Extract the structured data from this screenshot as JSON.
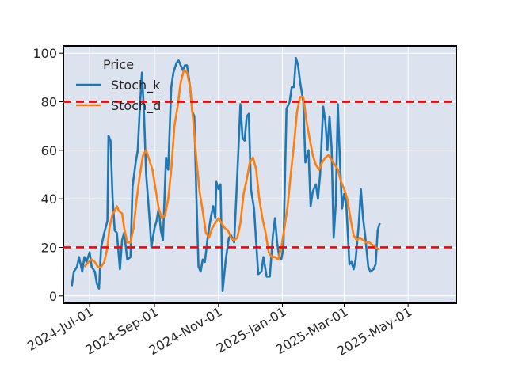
{
  "chart_data": {
    "type": "line",
    "legend_title": "Price",
    "legend_position": "top-left",
    "grid": true,
    "x_range": [
      "2024-06-06",
      "2025-06-16"
    ],
    "ylim": [
      -3,
      103
    ],
    "y_ticks": [
      0,
      20,
      40,
      60,
      80,
      100
    ],
    "x_ticks": [
      "2024-07-01",
      "2024-09-01",
      "2024-11-01",
      "2025-01-01",
      "2025-03-01",
      "2025-05-01"
    ],
    "x_tick_labels": [
      "2024-Jul-01",
      "2024-Sep-01",
      "2024-Nov-01",
      "2025-Jan-01",
      "2025-Mar-01",
      "2025-May-01"
    ],
    "reference_lines": [
      {
        "y": 80,
        "color": "#ff0000",
        "style": "dashed"
      },
      {
        "y": 20,
        "color": "#ff0000",
        "style": "dashed"
      }
    ],
    "colors": {
      "background": "#dde3ee",
      "grid": "#ffffff",
      "axes": "#000000",
      "stoch_k": "#1f77b4",
      "stoch_d": "#ff7f0e",
      "ref_line": "#ff0000"
    },
    "series": [
      {
        "name": "Stoch_k",
        "color": "#1f77b4",
        "points": [
          [
            "2024-06-14",
            4
          ],
          [
            "2024-06-16",
            10
          ],
          [
            "2024-06-19",
            12
          ],
          [
            "2024-06-21",
            16
          ],
          [
            "2024-06-24",
            10
          ],
          [
            "2024-06-26",
            16
          ],
          [
            "2024-06-28",
            14
          ],
          [
            "2024-07-01",
            18
          ],
          [
            "2024-07-03",
            12
          ],
          [
            "2024-07-06",
            10
          ],
          [
            "2024-07-08",
            5
          ],
          [
            "2024-07-10",
            3
          ],
          [
            "2024-07-12",
            20
          ],
          [
            "2024-07-15",
            26
          ],
          [
            "2024-07-18",
            31
          ],
          [
            "2024-07-19",
            66
          ],
          [
            "2024-07-21",
            64
          ],
          [
            "2024-07-23",
            40
          ],
          [
            "2024-07-25",
            27
          ],
          [
            "2024-07-27",
            26
          ],
          [
            "2024-07-30",
            11
          ],
          [
            "2024-08-01",
            23
          ],
          [
            "2024-08-03",
            26
          ],
          [
            "2024-08-06",
            15
          ],
          [
            "2024-08-09",
            16
          ],
          [
            "2024-08-11",
            45
          ],
          [
            "2024-08-14",
            55
          ],
          [
            "2024-08-16",
            60
          ],
          [
            "2024-08-18",
            78
          ],
          [
            "2024-08-20",
            92
          ],
          [
            "2024-08-22",
            75
          ],
          [
            "2024-08-24",
            50
          ],
          [
            "2024-08-27",
            33
          ],
          [
            "2024-08-29",
            20
          ],
          [
            "2024-09-01",
            28
          ],
          [
            "2024-09-03",
            31
          ],
          [
            "2024-09-05",
            36
          ],
          [
            "2024-09-07",
            27
          ],
          [
            "2024-09-09",
            23
          ],
          [
            "2024-09-12",
            57
          ],
          [
            "2024-09-14",
            52
          ],
          [
            "2024-09-17",
            86
          ],
          [
            "2024-09-19",
            92
          ],
          [
            "2024-09-22",
            96
          ],
          [
            "2024-09-24",
            97
          ],
          [
            "2024-09-26",
            95
          ],
          [
            "2024-09-28",
            93
          ],
          [
            "2024-09-30",
            95
          ],
          [
            "2024-10-02",
            95
          ],
          [
            "2024-10-05",
            86
          ],
          [
            "2024-10-07",
            76
          ],
          [
            "2024-10-09",
            74
          ],
          [
            "2024-10-11",
            40
          ],
          [
            "2024-10-13",
            12
          ],
          [
            "2024-10-15",
            10
          ],
          [
            "2024-10-17",
            15
          ],
          [
            "2024-10-19",
            14
          ],
          [
            "2024-10-22",
            25
          ],
          [
            "2024-10-25",
            33
          ],
          [
            "2024-10-27",
            37
          ],
          [
            "2024-10-29",
            32
          ],
          [
            "2024-10-30",
            47
          ],
          [
            "2024-11-01",
            44
          ],
          [
            "2024-11-03",
            46
          ],
          [
            "2024-11-05",
            2
          ],
          [
            "2024-11-08",
            15
          ],
          [
            "2024-11-11",
            24
          ],
          [
            "2024-11-13",
            25
          ],
          [
            "2024-11-16",
            22
          ],
          [
            "2024-11-19",
            50
          ],
          [
            "2024-11-22",
            79
          ],
          [
            "2024-11-24",
            65
          ],
          [
            "2024-11-26",
            64
          ],
          [
            "2024-11-28",
            74
          ],
          [
            "2024-11-30",
            75
          ],
          [
            "2024-12-02",
            44
          ],
          [
            "2024-12-05",
            36
          ],
          [
            "2024-12-07",
            22
          ],
          [
            "2024-12-09",
            9
          ],
          [
            "2024-12-12",
            10
          ],
          [
            "2024-12-14",
            16
          ],
          [
            "2024-12-17",
            8
          ],
          [
            "2024-12-20",
            8
          ],
          [
            "2024-12-23",
            25
          ],
          [
            "2024-12-25",
            32
          ],
          [
            "2024-12-27",
            22
          ],
          [
            "2024-12-29",
            16
          ],
          [
            "2024-12-31",
            15
          ],
          [
            "2025-01-02",
            20
          ],
          [
            "2025-01-05",
            77
          ],
          [
            "2025-01-08",
            80
          ],
          [
            "2025-01-10",
            86
          ],
          [
            "2025-01-12",
            86
          ],
          [
            "2025-01-14",
            98
          ],
          [
            "2025-01-16",
            95
          ],
          [
            "2025-01-18",
            88
          ],
          [
            "2025-01-21",
            80
          ],
          [
            "2025-01-23",
            55
          ],
          [
            "2025-01-26",
            60
          ],
          [
            "2025-01-28",
            37
          ],
          [
            "2025-01-30",
            43
          ],
          [
            "2025-02-02",
            46
          ],
          [
            "2025-02-04",
            40
          ],
          [
            "2025-02-06",
            50
          ],
          [
            "2025-02-09",
            78
          ],
          [
            "2025-02-11",
            72
          ],
          [
            "2025-02-13",
            60
          ],
          [
            "2025-02-15",
            74
          ],
          [
            "2025-02-17",
            61
          ],
          [
            "2025-02-19",
            24
          ],
          [
            "2025-02-21",
            38
          ],
          [
            "2025-02-23",
            79
          ],
          [
            "2025-02-25",
            55
          ],
          [
            "2025-02-27",
            36
          ],
          [
            "2025-03-01",
            42
          ],
          [
            "2025-03-03",
            38
          ],
          [
            "2025-03-06",
            13
          ],
          [
            "2025-03-08",
            14
          ],
          [
            "2025-03-10",
            11
          ],
          [
            "2025-03-12",
            15
          ],
          [
            "2025-03-15",
            30
          ],
          [
            "2025-03-17",
            44
          ],
          [
            "2025-03-19",
            32
          ],
          [
            "2025-03-21",
            25
          ],
          [
            "2025-03-24",
            12
          ],
          [
            "2025-03-26",
            10
          ],
          [
            "2025-03-29",
            11
          ],
          [
            "2025-03-31",
            13
          ],
          [
            "2025-04-02",
            27
          ],
          [
            "2025-04-04",
            30
          ]
        ]
      },
      {
        "name": "Stoch_d",
        "color": "#ff7f0e",
        "points": [
          [
            "2024-06-26",
            12
          ],
          [
            "2024-06-30",
            14
          ],
          [
            "2024-07-03",
            15
          ],
          [
            "2024-07-06",
            14
          ],
          [
            "2024-07-09",
            12
          ],
          [
            "2024-07-12",
            12
          ],
          [
            "2024-07-15",
            14
          ],
          [
            "2024-07-18",
            20
          ],
          [
            "2024-07-20",
            28
          ],
          [
            "2024-07-23",
            34
          ],
          [
            "2024-07-25",
            35
          ],
          [
            "2024-07-27",
            37
          ],
          [
            "2024-07-29",
            35
          ],
          [
            "2024-08-01",
            34
          ],
          [
            "2024-08-03",
            28
          ],
          [
            "2024-08-06",
            22
          ],
          [
            "2024-08-09",
            22
          ],
          [
            "2024-08-12",
            28
          ],
          [
            "2024-08-15",
            40
          ],
          [
            "2024-08-18",
            50
          ],
          [
            "2024-08-21",
            58
          ],
          [
            "2024-08-24",
            60
          ],
          [
            "2024-08-27",
            56
          ],
          [
            "2024-08-30",
            52
          ],
          [
            "2024-09-02",
            44
          ],
          [
            "2024-09-05",
            36
          ],
          [
            "2024-09-08",
            32
          ],
          [
            "2024-09-11",
            33
          ],
          [
            "2024-09-14",
            40
          ],
          [
            "2024-09-17",
            52
          ],
          [
            "2024-09-20",
            70
          ],
          [
            "2024-09-23",
            78
          ],
          [
            "2024-09-26",
            88
          ],
          [
            "2024-09-29",
            93
          ],
          [
            "2024-10-02",
            92
          ],
          [
            "2024-10-05",
            86
          ],
          [
            "2024-10-08",
            72
          ],
          [
            "2024-10-11",
            56
          ],
          [
            "2024-10-14",
            43
          ],
          [
            "2024-10-17",
            35
          ],
          [
            "2024-10-20",
            26
          ],
          [
            "2024-10-23",
            24
          ],
          [
            "2024-10-26",
            28
          ],
          [
            "2024-10-29",
            30
          ],
          [
            "2024-11-01",
            32
          ],
          [
            "2024-11-04",
            30
          ],
          [
            "2024-11-07",
            28
          ],
          [
            "2024-11-10",
            27
          ],
          [
            "2024-11-13",
            24
          ],
          [
            "2024-11-16",
            23
          ],
          [
            "2024-11-19",
            24
          ],
          [
            "2024-11-22",
            30
          ],
          [
            "2024-11-25",
            42
          ],
          [
            "2024-11-28",
            48
          ],
          [
            "2024-12-01",
            55
          ],
          [
            "2024-12-04",
            57
          ],
          [
            "2024-12-07",
            52
          ],
          [
            "2024-12-10",
            40
          ],
          [
            "2024-12-13",
            32
          ],
          [
            "2024-12-16",
            26
          ],
          [
            "2024-12-19",
            18
          ],
          [
            "2024-12-22",
            16
          ],
          [
            "2024-12-25",
            16
          ],
          [
            "2024-12-28",
            15
          ],
          [
            "2024-12-31",
            20
          ],
          [
            "2025-01-03",
            28
          ],
          [
            "2025-01-06",
            37
          ],
          [
            "2025-01-09",
            50
          ],
          [
            "2025-01-12",
            62
          ],
          [
            "2025-01-15",
            76
          ],
          [
            "2025-01-18",
            82
          ],
          [
            "2025-01-21",
            82
          ],
          [
            "2025-01-24",
            72
          ],
          [
            "2025-01-27",
            65
          ],
          [
            "2025-01-30",
            58
          ],
          [
            "2025-02-02",
            54
          ],
          [
            "2025-02-05",
            52
          ],
          [
            "2025-02-08",
            55
          ],
          [
            "2025-02-11",
            57
          ],
          [
            "2025-02-14",
            58
          ],
          [
            "2025-02-17",
            56
          ],
          [
            "2025-02-20",
            54
          ],
          [
            "2025-02-23",
            52
          ],
          [
            "2025-02-26",
            47
          ],
          [
            "2025-03-01",
            44
          ],
          [
            "2025-03-04",
            40
          ],
          [
            "2025-03-07",
            32
          ],
          [
            "2025-03-10",
            25
          ],
          [
            "2025-03-13",
            23
          ],
          [
            "2025-03-16",
            24
          ],
          [
            "2025-03-19",
            23
          ],
          [
            "2025-03-22",
            22
          ],
          [
            "2025-03-25",
            22
          ],
          [
            "2025-03-28",
            21
          ],
          [
            "2025-03-31",
            20
          ],
          [
            "2025-04-04",
            19
          ]
        ]
      }
    ]
  }
}
